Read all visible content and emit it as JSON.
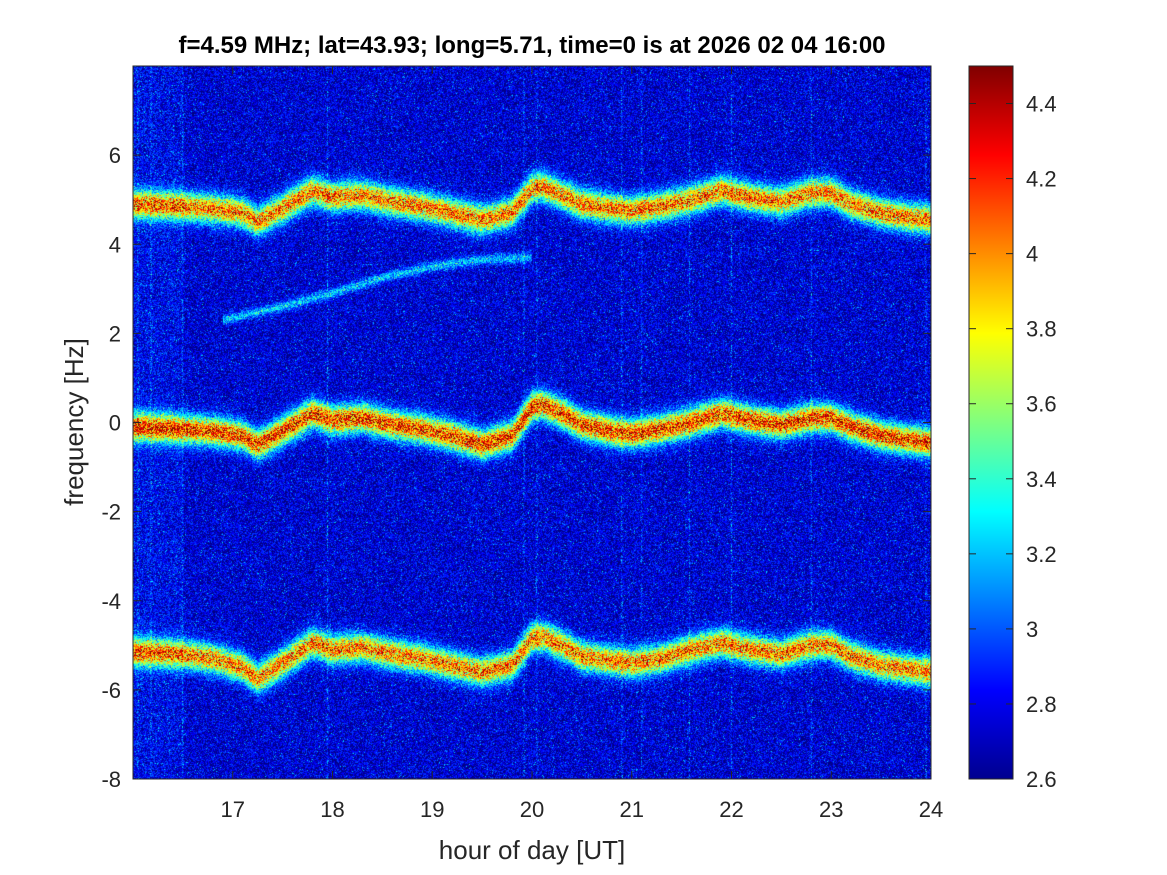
{
  "chart_data": {
    "type": "heatmap",
    "title": "f=4.59 MHz;  lat=43.93; long=5.71, time=0 is at 2026 02 04 16:00",
    "xlabel": "hour of day [UT]",
    "ylabel": "frequency [Hz]",
    "xlim": [
      16,
      24
    ],
    "ylim": [
      -8,
      8
    ],
    "x_ticks": [
      "17",
      "18",
      "19",
      "20",
      "21",
      "22",
      "23",
      "24"
    ],
    "y_ticks": [
      "-8",
      "-6",
      "-4",
      "-2",
      "0",
      "2",
      "4",
      "6"
    ],
    "colorbar": {
      "limits": [
        2.6,
        4.5
      ],
      "ticks": [
        "2.6",
        "2.8",
        "3",
        "3.2",
        "3.4",
        "3.6",
        "3.8",
        "4",
        "4.2",
        "4.4"
      ],
      "colormap": "jet"
    },
    "background_level": 2.75,
    "traces": [
      {
        "role": "carrier",
        "x": [
          16.0,
          16.5,
          16.8,
          17.1,
          17.25,
          17.5,
          17.8,
          18.0,
          18.3,
          18.6,
          18.9,
          19.2,
          19.5,
          19.8,
          20.0,
          20.1,
          20.3,
          20.5,
          20.8,
          21.0,
          21.3,
          21.6,
          21.9,
          22.2,
          22.5,
          22.8,
          23.0,
          23.2,
          23.5,
          23.8,
          24.0
        ],
        "y": [
          -0.1,
          -0.15,
          -0.2,
          -0.3,
          -0.5,
          -0.2,
          0.2,
          0.05,
          0.1,
          -0.05,
          -0.15,
          -0.3,
          -0.5,
          -0.3,
          0.35,
          0.4,
          0.2,
          -0.05,
          -0.2,
          -0.25,
          -0.15,
          0.0,
          0.2,
          0.05,
          -0.05,
          0.1,
          0.1,
          -0.1,
          -0.3,
          -0.4,
          -0.45
        ],
        "peak": 4.45
      },
      {
        "role": "upper sideband",
        "x": [
          16.0,
          16.5,
          16.8,
          17.1,
          17.25,
          17.5,
          17.8,
          18.0,
          18.3,
          18.6,
          18.9,
          19.2,
          19.5,
          19.8,
          20.0,
          20.1,
          20.3,
          20.5,
          20.8,
          21.0,
          21.3,
          21.6,
          21.9,
          22.2,
          22.5,
          22.8,
          23.0,
          23.2,
          23.5,
          23.8,
          24.0
        ],
        "y": [
          4.9,
          4.85,
          4.8,
          4.7,
          4.5,
          4.8,
          5.2,
          5.05,
          5.1,
          4.95,
          4.85,
          4.7,
          4.55,
          4.7,
          5.25,
          5.3,
          5.1,
          4.9,
          4.8,
          4.75,
          4.85,
          5.0,
          5.2,
          5.05,
          4.95,
          5.15,
          5.15,
          4.9,
          4.7,
          4.6,
          4.55
        ],
        "peak": 4.3
      },
      {
        "role": "lower sideband",
        "x": [
          16.0,
          16.5,
          16.8,
          17.1,
          17.25,
          17.5,
          17.8,
          18.0,
          18.3,
          18.6,
          18.9,
          19.2,
          19.5,
          19.8,
          20.0,
          20.1,
          20.3,
          20.5,
          20.8,
          21.0,
          21.3,
          21.6,
          21.9,
          22.2,
          22.5,
          22.8,
          23.0,
          23.2,
          23.5,
          23.8,
          24.0
        ],
        "y": [
          -5.15,
          -5.2,
          -5.3,
          -5.5,
          -5.75,
          -5.4,
          -4.95,
          -5.1,
          -5.05,
          -5.2,
          -5.3,
          -5.45,
          -5.6,
          -5.45,
          -4.85,
          -4.8,
          -5.0,
          -5.25,
          -5.35,
          -5.4,
          -5.3,
          -5.1,
          -4.95,
          -5.1,
          -5.2,
          -5.0,
          -5.0,
          -5.25,
          -5.45,
          -5.55,
          -5.6
        ],
        "peak": 4.3
      },
      {
        "role": "faint trace",
        "x": [
          16.9,
          17.5,
          18.0,
          18.5,
          19.0,
          19.5,
          20.0
        ],
        "y": [
          2.3,
          2.6,
          2.9,
          3.25,
          3.5,
          3.65,
          3.7
        ],
        "peak": 3.3
      }
    ],
    "vertical_streaks_hours": [
      16.05,
      16.18,
      16.5,
      17.95,
      19.92,
      20.05,
      20.9,
      21.1,
      21.58,
      22.0,
      22.8,
      23.95
    ],
    "grid": false,
    "legend": "none"
  }
}
